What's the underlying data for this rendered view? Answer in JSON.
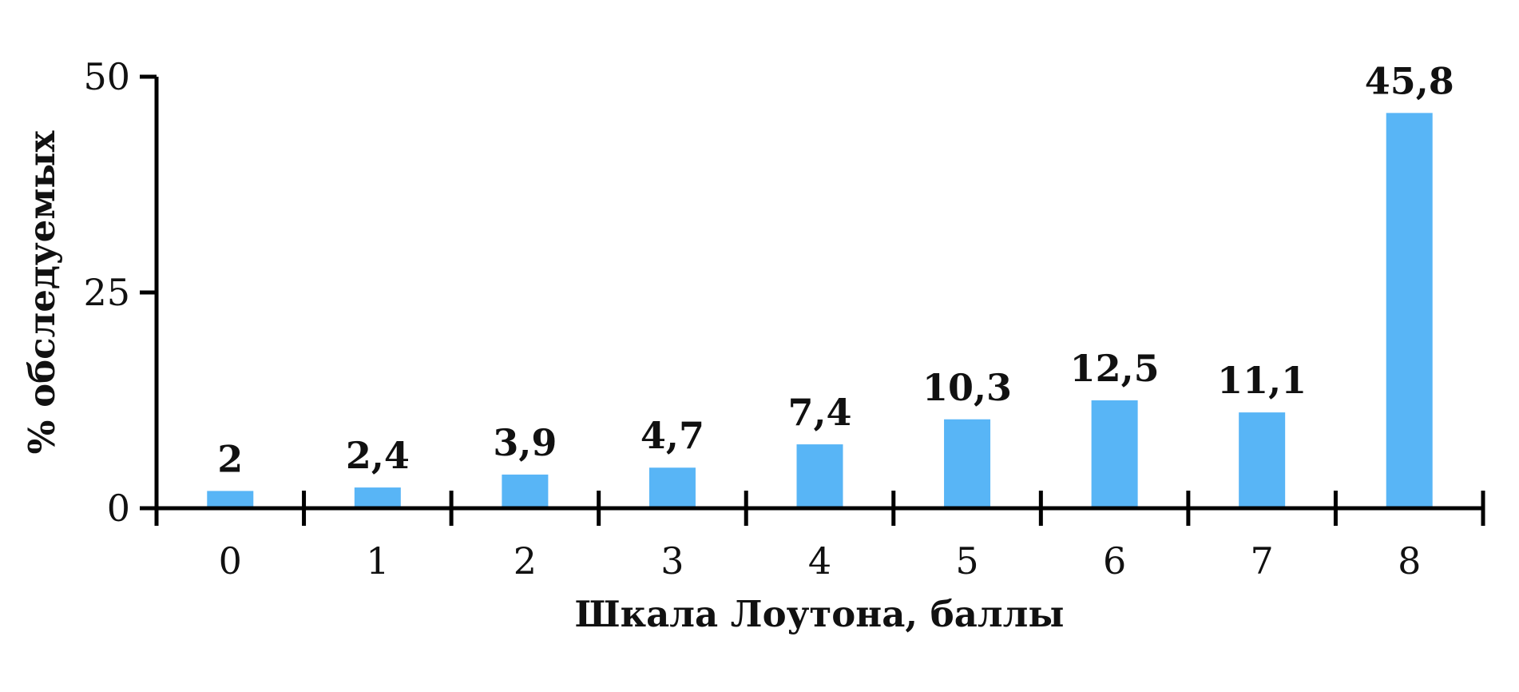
{
  "chart_data": {
    "type": "bar",
    "categories": [
      "0",
      "1",
      "2",
      "3",
      "4",
      "5",
      "6",
      "7",
      "8"
    ],
    "values": [
      2,
      2.4,
      3.9,
      4.7,
      7.4,
      10.3,
      12.5,
      11.1,
      45.8
    ],
    "value_labels": [
      "2",
      "2,4",
      "3,9",
      "4,7",
      "7,4",
      "10,3",
      "12,5",
      "11,1",
      "45,8"
    ],
    "title": "",
    "xlabel": "Шкала Лоутона, баллы",
    "ylabel": "% обследуемых",
    "ylim": [
      0,
      50
    ],
    "yticks": [
      0,
      25,
      50
    ],
    "ytick_labels": [
      "0",
      "25",
      "50"
    ],
    "grid": false,
    "legend": null,
    "colors": {
      "bar": "#58B5F6",
      "axis": "#000000",
      "text": "#111111",
      "background": "#ffffff"
    }
  }
}
